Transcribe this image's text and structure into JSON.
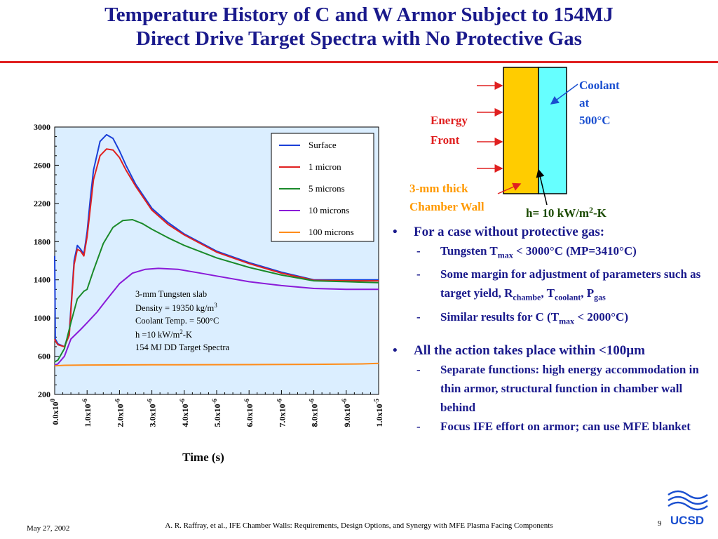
{
  "title": {
    "line1": "Temperature History of C and W Armor Subject to 154MJ",
    "line2": "Direct Drive Target Spectra with No Protective Gas"
  },
  "colors": {
    "title": "#1a1a8c",
    "rule": "#e02020",
    "armor": "#ffcc00",
    "coolant_layer": "#66ffff",
    "label_red": "#e02020",
    "label_orange": "#ff9900",
    "arrow_blue": "#1a4fd0"
  },
  "diagram": {
    "energy_label": [
      "Energy",
      "Front"
    ],
    "coolant_label": [
      "Coolant",
      "at",
      "500°C"
    ],
    "wall_label": [
      "3-mm thick",
      "Chamber Wall"
    ],
    "h_label": "h= 10 kW/m",
    "h_sup": "2",
    "h_suffix": "-K"
  },
  "chart_data": {
    "type": "line",
    "xlabel": "Time (s)",
    "ylabel": "",
    "xlim": [
      0,
      1e-05
    ],
    "ylim": [
      200,
      3000
    ],
    "yticks": [
      "200",
      "600",
      "1000",
      "1400",
      "1800",
      "2200",
      "2600",
      "3000"
    ],
    "xticks": [
      {
        "mant": "0.0x10",
        "exp": "0"
      },
      {
        "mant": "1.0x10",
        "exp": "-6"
      },
      {
        "mant": "2.0x10",
        "exp": "-6"
      },
      {
        "mant": "3.0x10",
        "exp": "-6"
      },
      {
        "mant": "4.0x10",
        "exp": "-6"
      },
      {
        "mant": "5.0x10",
        "exp": "-6"
      },
      {
        "mant": "6.0x10",
        "exp": "-6"
      },
      {
        "mant": "7.0x10",
        "exp": "-6"
      },
      {
        "mant": "8.0x10",
        "exp": "-6"
      },
      {
        "mant": "9.0x10",
        "exp": "-6"
      },
      {
        "mant": "1.0x10",
        "exp": "-5"
      }
    ],
    "grid": false,
    "legend_position": "top-right",
    "annotation": {
      "line1": "3-mm Tungsten slab",
      "line2": "Density = 19350 kg/m",
      "line2_sup": "3",
      "line3": "Coolant Temp. = 500°C",
      "line4": "h =10 kW/m",
      "line4_sup": "2",
      "line4_suffix": "-K",
      "line5": "154 MJ DD Target Spectra"
    },
    "series": [
      {
        "name": "Surface",
        "color": "#1a3fd8",
        "x": [
          0,
          2e-08,
          1e-07,
          3e-07,
          4.5e-07,
          6e-07,
          7e-07,
          8e-07,
          9e-07,
          1e-06,
          1.1e-06,
          1.2e-06,
          1.4e-06,
          1.6e-06,
          1.8e-06,
          2e-06,
          2.2e-06,
          2.5e-06,
          3e-06,
          3.5e-06,
          4e-06,
          5e-06,
          6e-06,
          7e-06,
          8e-06,
          9e-06,
          1e-05
        ],
        "y": [
          1650,
          780,
          730,
          700,
          850,
          1600,
          1760,
          1720,
          1670,
          1900,
          2250,
          2550,
          2850,
          2920,
          2880,
          2750,
          2600,
          2400,
          2150,
          2000,
          1880,
          1700,
          1580,
          1480,
          1400,
          1400,
          1400
        ]
      },
      {
        "name": "1 micron",
        "color": "#e02020",
        "x": [
          0,
          2e-08,
          1e-07,
          3e-07,
          4.5e-07,
          6e-07,
          7e-07,
          8e-07,
          9e-07,
          1e-06,
          1.1e-06,
          1.2e-06,
          1.4e-06,
          1.6e-06,
          1.8e-06,
          2e-06,
          2.2e-06,
          2.5e-06,
          3e-06,
          3.5e-06,
          4e-06,
          5e-06,
          6e-06,
          7e-06,
          8e-06,
          9e-06,
          1e-05
        ],
        "y": [
          780,
          760,
          720,
          700,
          820,
          1560,
          1720,
          1700,
          1650,
          1850,
          2150,
          2450,
          2700,
          2770,
          2760,
          2680,
          2550,
          2380,
          2130,
          1980,
          1870,
          1690,
          1570,
          1470,
          1395,
          1390,
          1390
        ]
      },
      {
        "name": "5 microns",
        "color": "#1a8a2a",
        "x": [
          0,
          1e-07,
          3e-07,
          5e-07,
          7e-07,
          9e-07,
          1e-06,
          1.2e-06,
          1.5e-06,
          1.8e-06,
          2.1e-06,
          2.4e-06,
          2.7e-06,
          3e-06,
          3.5e-06,
          4e-06,
          5e-06,
          6e-06,
          7e-06,
          8e-06,
          9e-06,
          1e-05
        ],
        "y": [
          540,
          560,
          680,
          950,
          1200,
          1280,
          1300,
          1500,
          1780,
          1950,
          2020,
          2030,
          1990,
          1930,
          1840,
          1760,
          1630,
          1530,
          1450,
          1390,
          1380,
          1370
        ]
      },
      {
        "name": "10 microns",
        "color": "#8a1ad8",
        "x": [
          0,
          1e-07,
          3e-07,
          5e-07,
          8e-07,
          1e-06,
          1.3e-06,
          1.6e-06,
          2e-06,
          2.4e-06,
          2.8e-06,
          3.2e-06,
          3.8e-06,
          4.5e-06,
          5e-06,
          6e-06,
          7e-06,
          8e-06,
          9e-06,
          1e-05
        ],
        "y": [
          505,
          520,
          600,
          780,
          880,
          950,
          1060,
          1190,
          1360,
          1470,
          1510,
          1520,
          1510,
          1470,
          1440,
          1380,
          1340,
          1310,
          1300,
          1300
        ]
      },
      {
        "name": "100 microns",
        "color": "#ff8c1a",
        "x": [
          0,
          3e-07,
          1e-06,
          3e-06,
          6e-06,
          8e-06,
          9.5e-06,
          1e-05
        ],
        "y": [
          500,
          505,
          508,
          510,
          512,
          515,
          520,
          525
        ]
      }
    ]
  },
  "bullets": [
    {
      "text": "For a case without protective gas:",
      "subs": [
        {
          "parts": [
            {
              "t": "Tungsten T"
            },
            {
              "t": "max",
              "sub": true
            },
            {
              "t": " < 3000°C (MP=3410°C)"
            }
          ]
        },
        {
          "parts": [
            {
              "t": "Some margin for adjustment of parameters such as target yield, R"
            },
            {
              "t": "chambe",
              "sub": true
            },
            {
              "t": ", T"
            },
            {
              "t": "coolant",
              "sub": true
            },
            {
              "t": ", P"
            },
            {
              "t": "gas",
              "sub": true
            }
          ]
        },
        {
          "parts": [
            {
              "t": "Similar results for C (T"
            },
            {
              "t": "max",
              "sub": true
            },
            {
              "t": " < 2000°C)"
            }
          ]
        }
      ]
    },
    {
      "text": "All the action takes place within <100µm",
      "subs": [
        {
          "parts": [
            {
              "t": "Separate functions: high energy accommodation in thin armor, structural function in chamber wall behind"
            }
          ]
        },
        {
          "parts": [
            {
              "t": "Focus IFE effort on armor; can use MFE blanket"
            }
          ]
        }
      ]
    }
  ],
  "footer": {
    "date": "May 27, 2002",
    "citation": "A. R. Raffray, et al., IFE Chamber Walls: Requirements, Design Options, and Synergy with MFE Plasma Facing Components",
    "page": "9",
    "logo_text": "UCSD"
  }
}
